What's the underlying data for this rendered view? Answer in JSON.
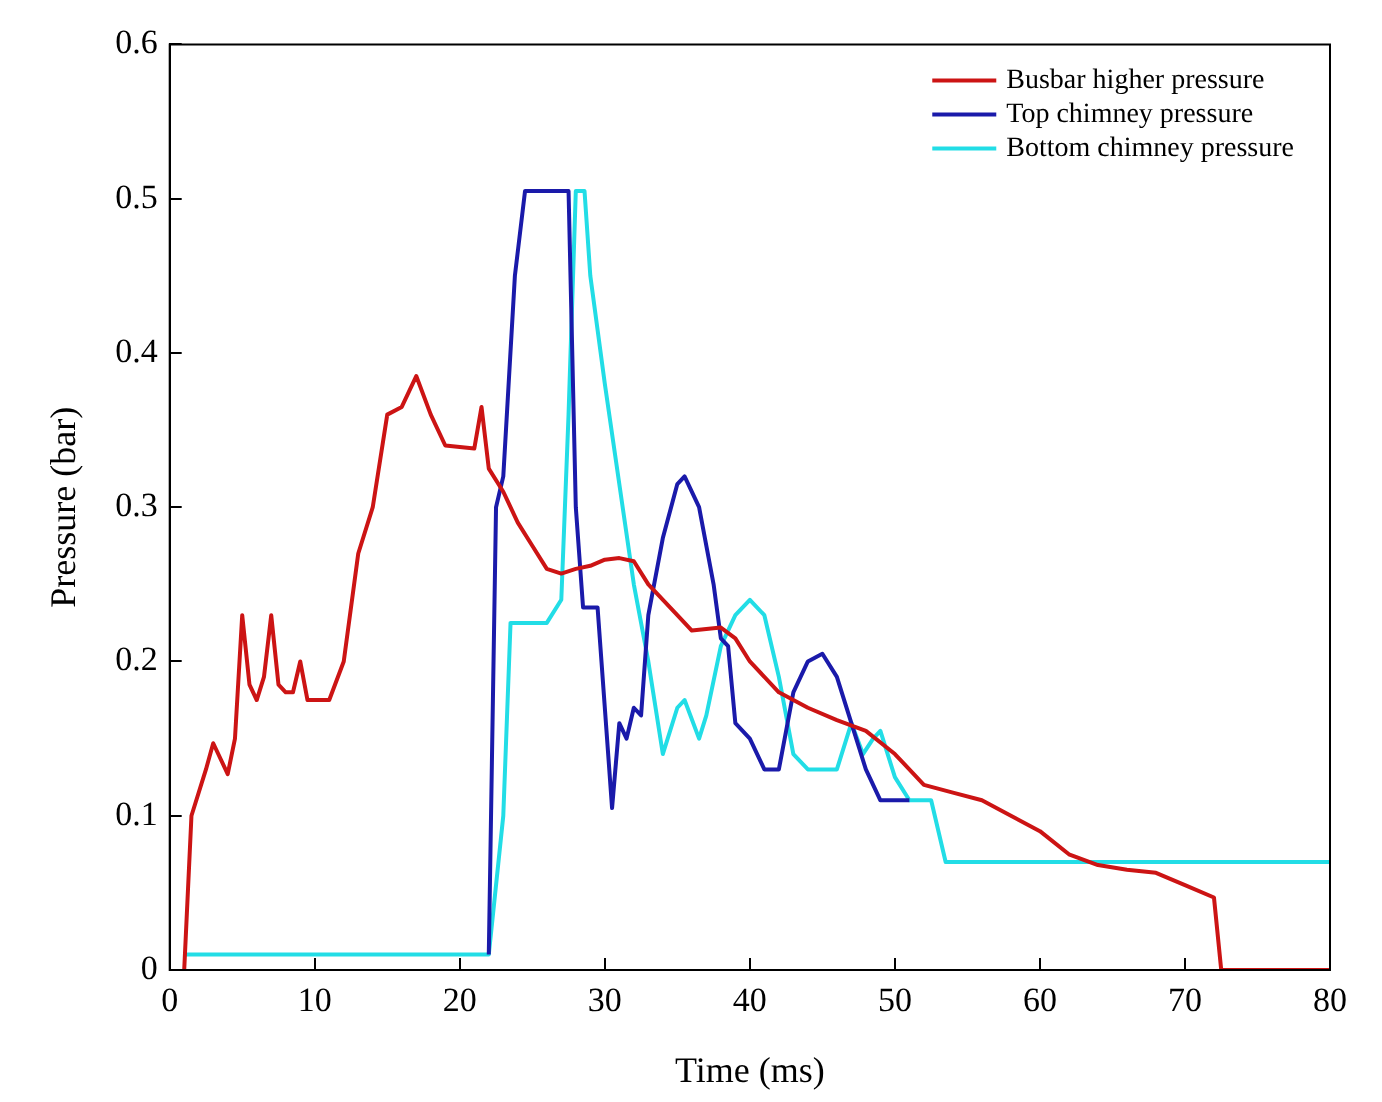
{
  "chart_data": {
    "type": "line",
    "xlabel": "Time (ms)",
    "ylabel": "Pressure (bar)",
    "xlim": [
      0,
      80
    ],
    "xticks": [
      0,
      10,
      20,
      30,
      40,
      50,
      60,
      70,
      80
    ],
    "ylim": [
      0,
      0.6
    ],
    "yticks": [
      0,
      0.1,
      0.2,
      0.3,
      0.4,
      0.5,
      0.6
    ],
    "grid": false,
    "legend": "top right",
    "marker": "none",
    "line_style": "solid",
    "series": [
      {
        "name": "Busbar higher pressure",
        "color": "#cc1414",
        "x": [
          1,
          1.5,
          2.5,
          3,
          4,
          4.5,
          5,
          5.5,
          6,
          6.5,
          7,
          7.5,
          8,
          8.5,
          9,
          9.5,
          11,
          12,
          13,
          14,
          15,
          16,
          17,
          18,
          19,
          21,
          21.5,
          22,
          23,
          24,
          25,
          26,
          27,
          28,
          29,
          30,
          31,
          32,
          33,
          35,
          36,
          38,
          39,
          40,
          42,
          44,
          46,
          48,
          50,
          52,
          54,
          56,
          58,
          60,
          62,
          64,
          66,
          68,
          70,
          72,
          72.5,
          80
        ],
        "values": [
          0,
          0.1,
          0.13,
          0.147,
          0.127,
          0.15,
          0.23,
          0.185,
          0.175,
          0.19,
          0.23,
          0.185,
          0.18,
          0.18,
          0.2,
          0.175,
          0.175,
          0.2,
          0.27,
          0.3,
          0.36,
          0.365,
          0.385,
          0.36,
          0.34,
          0.338,
          0.365,
          0.325,
          0.31,
          0.29,
          0.275,
          0.26,
          0.257,
          0.26,
          0.262,
          0.266,
          0.267,
          0.265,
          0.25,
          0.23,
          0.22,
          0.222,
          0.215,
          0.2,
          0.18,
          0.17,
          0.162,
          0.155,
          0.14,
          0.12,
          0.115,
          0.11,
          0.1,
          0.09,
          0.075,
          0.068,
          0.065,
          0.063,
          0.055,
          0.047,
          0,
          0
        ]
      },
      {
        "name": "Top chimney pressure",
        "color": "#1a1aaa",
        "x": [
          22,
          22.5,
          23,
          23.8,
          24.5,
          27.5,
          28,
          28.5,
          29.5,
          30.5,
          31,
          31.5,
          32,
          32.5,
          33,
          34,
          35,
          35.5,
          36.5,
          37.5,
          38,
          38.5,
          39,
          40,
          41,
          42,
          43,
          44,
          45,
          46,
          47,
          48,
          49,
          51
        ],
        "values": [
          0.01,
          0.3,
          0.32,
          0.45,
          0.505,
          0.505,
          0.3,
          0.235,
          0.235,
          0.105,
          0.16,
          0.15,
          0.17,
          0.165,
          0.23,
          0.28,
          0.315,
          0.32,
          0.3,
          0.25,
          0.215,
          0.21,
          0.16,
          0.15,
          0.13,
          0.13,
          0.18,
          0.2,
          0.205,
          0.19,
          0.16,
          0.13,
          0.11,
          0.11
        ]
      },
      {
        "name": "Bottom chimney pressure",
        "color": "#22dde6",
        "x": [
          1,
          22,
          23,
          23.5,
          26,
          27,
          27.5,
          28,
          28.6,
          29,
          30,
          32,
          33,
          34,
          35,
          35.5,
          36.5,
          37,
          38,
          39,
          40,
          41,
          42,
          43,
          44,
          46,
          47,
          47.8,
          48.5,
          49,
          50,
          51,
          52.5,
          53.5,
          80
        ],
        "values": [
          0.01,
          0.01,
          0.1,
          0.225,
          0.225,
          0.24,
          0.36,
          0.505,
          0.505,
          0.45,
          0.38,
          0.25,
          0.2,
          0.14,
          0.17,
          0.175,
          0.15,
          0.165,
          0.21,
          0.23,
          0.24,
          0.23,
          0.19,
          0.14,
          0.13,
          0.13,
          0.16,
          0.14,
          0.15,
          0.155,
          0.125,
          0.11,
          0.11,
          0.07,
          0.07
        ]
      }
    ]
  }
}
